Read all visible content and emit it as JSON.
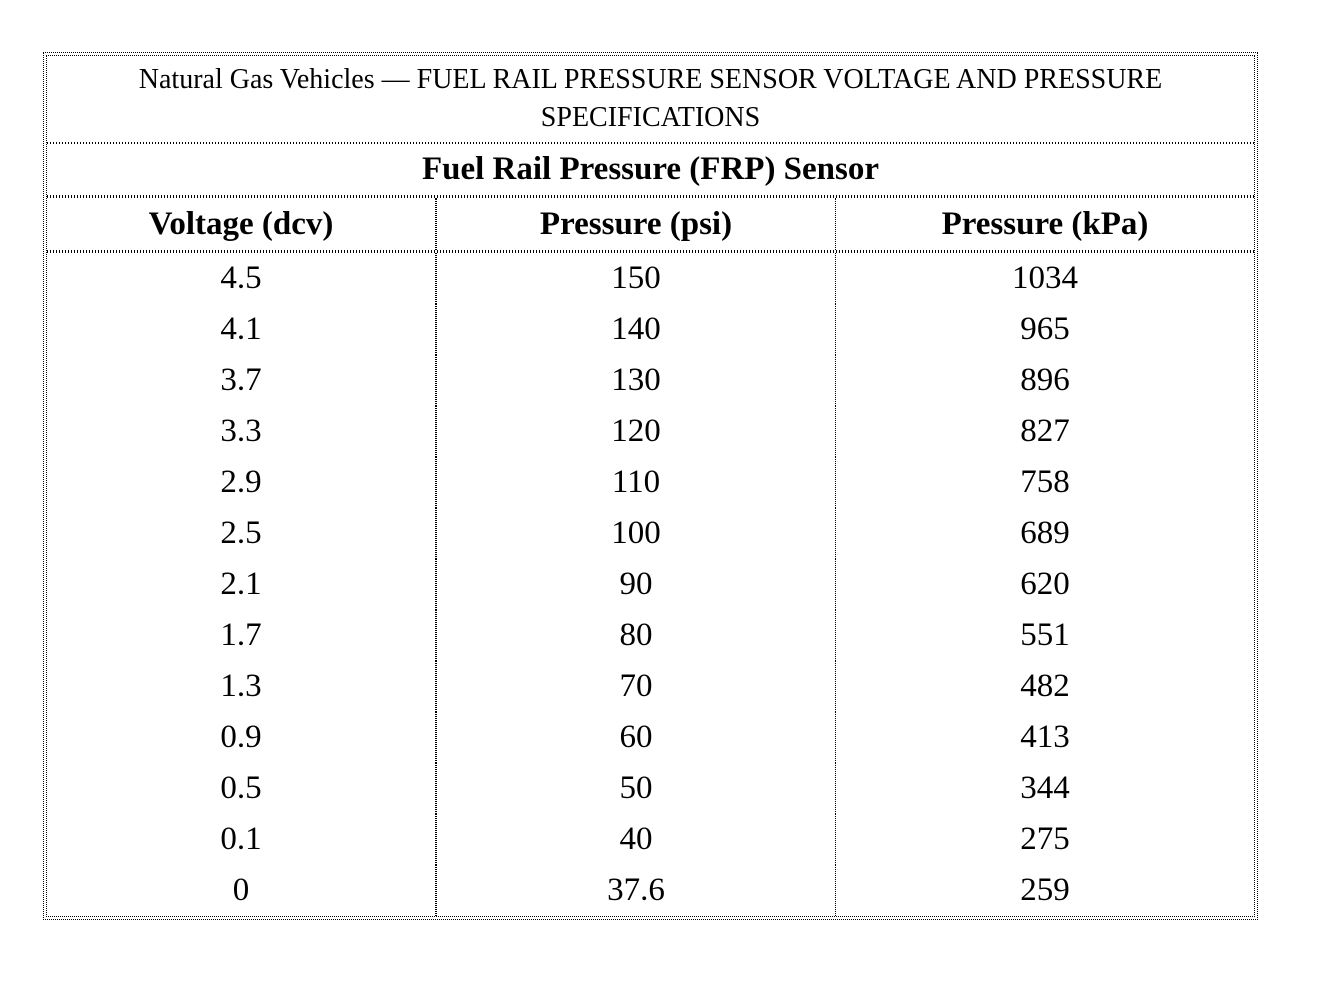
{
  "page": {
    "background": "#ffffff"
  },
  "table": {
    "title": "Natural Gas Vehicles — FUEL RAIL PRESSURE SENSOR VOLTAGE AND PRESSURE SPECIFICATIONS",
    "subtitle": "Fuel Rail Pressure (FRP) Sensor",
    "columns": [
      "Voltage (dcv)",
      "Pressure (psi)",
      "Pressure (kPa)"
    ],
    "rows": [
      [
        "4.5",
        "150",
        "1034"
      ],
      [
        "4.1",
        "140",
        "965"
      ],
      [
        "3.7",
        "130",
        "896"
      ],
      [
        "3.3",
        "120",
        "827"
      ],
      [
        "2.9",
        "110",
        "758"
      ],
      [
        "2.5",
        "100",
        "689"
      ],
      [
        "2.1",
        "90",
        "620"
      ],
      [
        "1.7",
        "80",
        "551"
      ],
      [
        "1.3",
        "70",
        "482"
      ],
      [
        "0.9",
        "60",
        "413"
      ],
      [
        "0.5",
        "50",
        "344"
      ],
      [
        "0.1",
        "40",
        "275"
      ],
      [
        "0",
        "37.6",
        "259"
      ]
    ],
    "colors": {
      "border": "#000000",
      "text": "#000000",
      "background": "#ffffff"
    }
  },
  "chart_data": {
    "type": "table",
    "title": "Natural Gas Vehicles — FUEL RAIL PRESSURE SENSOR VOLTAGE AND PRESSURE SPECIFICATIONS",
    "subtitle": "Fuel Rail Pressure (FRP) Sensor",
    "columns": [
      "Voltage (dcv)",
      "Pressure (psi)",
      "Pressure (kPa)"
    ],
    "rows": [
      [
        4.5,
        150,
        1034
      ],
      [
        4.1,
        140,
        965
      ],
      [
        3.7,
        130,
        896
      ],
      [
        3.3,
        120,
        827
      ],
      [
        2.9,
        110,
        758
      ],
      [
        2.5,
        100,
        689
      ],
      [
        2.1,
        90,
        620
      ],
      [
        1.7,
        80,
        551
      ],
      [
        1.3,
        70,
        482
      ],
      [
        0.9,
        60,
        413
      ],
      [
        0.5,
        50,
        344
      ],
      [
        0.1,
        40,
        275
      ],
      [
        0,
        37.6,
        259
      ]
    ]
  }
}
